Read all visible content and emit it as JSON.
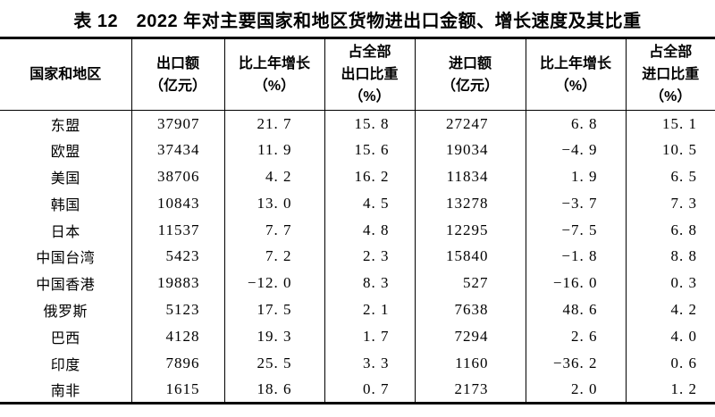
{
  "title": "表 12　2022 年对主要国家和地区货物进出口金额、增长速度及其比重",
  "colors": {
    "text": "#000000",
    "background": "#ffffff",
    "border": "#000000"
  },
  "table": {
    "columns": [
      {
        "id": "region",
        "header_lines": [
          "国家和地区"
        ]
      },
      {
        "id": "export_value",
        "header_lines": [
          "出口额",
          "（亿元）"
        ]
      },
      {
        "id": "export_growth",
        "header_lines": [
          "比上年增长",
          "（%）"
        ]
      },
      {
        "id": "export_share",
        "header_lines": [
          "占全部",
          "出口比重",
          "（%）"
        ]
      },
      {
        "id": "import_value",
        "header_lines": [
          "进口额",
          "（亿元）"
        ]
      },
      {
        "id": "import_growth",
        "header_lines": [
          "比上年增长",
          "（%）"
        ]
      },
      {
        "id": "import_share",
        "header_lines": [
          "占全部",
          "进口比重",
          "（%）"
        ]
      }
    ],
    "rows": [
      {
        "region": "东盟",
        "values": [
          "37907",
          "21.7",
          "15.8",
          "27247",
          "6.8",
          "15.1"
        ]
      },
      {
        "region": "欧盟",
        "values": [
          "37434",
          "11.9",
          "15.6",
          "19034",
          "-4.9",
          "10.5"
        ]
      },
      {
        "region": "美国",
        "values": [
          "38706",
          "4.2",
          "16.2",
          "11834",
          "1.9",
          "6.5"
        ]
      },
      {
        "region": "韩国",
        "values": [
          "10843",
          "13.0",
          "4.5",
          "13278",
          "-3.7",
          "7.3"
        ]
      },
      {
        "region": "日本",
        "values": [
          "11537",
          "7.7",
          "4.8",
          "12295",
          "-7.5",
          "6.8"
        ]
      },
      {
        "region": "中国台湾",
        "values": [
          "5423",
          "7.2",
          "2.3",
          "15840",
          "-1.8",
          "8.8"
        ]
      },
      {
        "region": "中国香港",
        "values": [
          "19883",
          "-12.0",
          "8.3",
          "527",
          "-16.0",
          "0.3"
        ]
      },
      {
        "region": "俄罗斯",
        "values": [
          "5123",
          "17.5",
          "2.1",
          "7638",
          "48.6",
          "4.2"
        ]
      },
      {
        "region": "巴西",
        "values": [
          "4128",
          "19.3",
          "1.7",
          "7294",
          "2.6",
          "4.0"
        ]
      },
      {
        "region": "印度",
        "values": [
          "7896",
          "25.5",
          "3.3",
          "1160",
          "-36.2",
          "0.6"
        ]
      },
      {
        "region": "南非",
        "values": [
          "1615",
          "18.6",
          "0.7",
          "2173",
          "2.0",
          "1.2"
        ]
      }
    ]
  }
}
